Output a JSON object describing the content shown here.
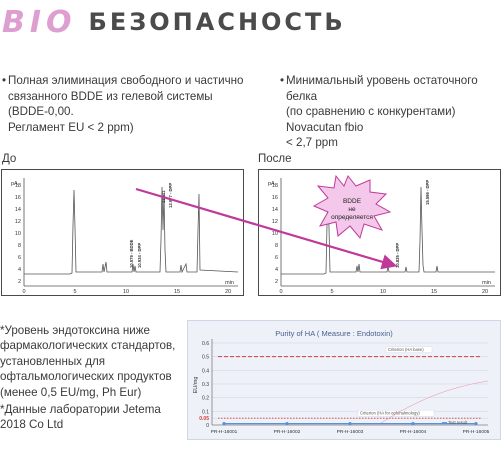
{
  "header": {
    "brand": "BIO",
    "title": "БЕЗОПАСНОСТЬ"
  },
  "bullets": {
    "left": [
      "•",
      "Полная элиминация свободного и частично",
      "связанного BDDE из гелевой системы (BDDE-0,00.",
      "Регламент EU < 2 ppm)"
    ],
    "right": [
      "•",
      "Минимальный уровень остаточного белка",
      "(по сравнению с конкурентами) Novacutan fbio",
      "< 2,7 ppm"
    ]
  },
  "labels": {
    "before": "До",
    "after": "После"
  },
  "chromatogram": {
    "y_unit": "pA",
    "x_unit": "min",
    "y_ticks": [
      "18",
      "16",
      "14",
      "12",
      "10",
      "8",
      "6",
      "4",
      "2",
      "0"
    ],
    "x_ticks": [
      "0",
      "5",
      "10",
      "15",
      "20"
    ],
    "before_peaks": [
      "10.579 - BDDE",
      "10.934 - DPP",
      "13.511",
      "13.977 - DPP"
    ],
    "after_peaks": [
      "10.835 - DPP",
      "15.596 - DPP"
    ],
    "callout": [
      "BDDE",
      "не",
      "определяется"
    ],
    "colors": {
      "arrow": "#c0399a",
      "callout_fill": "#f3c8ea",
      "trace": "#555555"
    }
  },
  "notes": [
    "*Уровень эндотоксина ниже фармакологических стандартов, установленных для офтальмологических продуктов (менее 0,5 EU/mg, Ph Eur)",
    "*Данные лаборатории Jetema 2018 Co Ltd"
  ],
  "chart_data": {
    "type": "line",
    "title": "Purity of HA ( Measure : Endotoxin)",
    "ylabel": "EU/mg",
    "ylim": [
      0,
      0.6
    ],
    "y_ticks": [
      "0",
      "0.05",
      "0.1",
      "0.2",
      "0.3",
      "0.4",
      "0.5",
      "0.6"
    ],
    "categories": [
      "PR-H-16001",
      "PR-H-16002",
      "PR-H-16003",
      "PR-H-16004",
      "PR-H-16005"
    ],
    "series": [
      {
        "name": "Test result",
        "values": [
          0.01,
          0.01,
          0.01,
          0.01,
          0.01
        ],
        "color": "#5b8fd6"
      }
    ],
    "references": [
      {
        "name": "Criterion (HA base)",
        "value": 0.5,
        "color": "#d33a3a"
      },
      {
        "name": "Criterion (HA for ophthalmology)",
        "value": 0.05,
        "color": "#d33a3a"
      }
    ],
    "highlight_tick": "0.05",
    "highlight_color": "#d33a3a"
  }
}
